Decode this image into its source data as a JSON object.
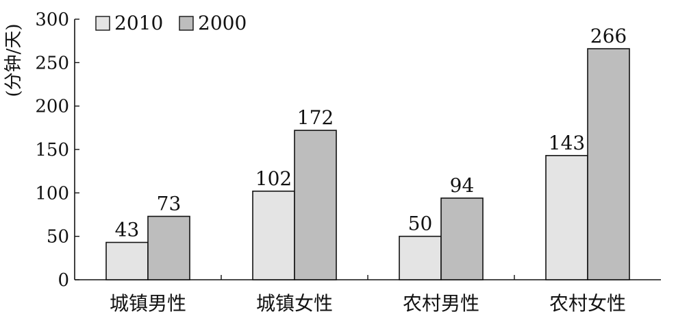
{
  "chart_data": {
    "type": "bar",
    "ylabel": "(分钟/天)",
    "xlabel": "",
    "ylim": [
      0,
      300
    ],
    "yticks": [
      0,
      50,
      100,
      150,
      200,
      250,
      300
    ],
    "categories": [
      "城镇男性",
      "城镇女性",
      "农村男性",
      "农村女性"
    ],
    "series": [
      {
        "name": "2010",
        "values": [
          43,
          102,
          50,
          143
        ],
        "color": "#e4e4e4"
      },
      {
        "name": "2000",
        "values": [
          73,
          172,
          94,
          266
        ],
        "color": "#bdbdbd"
      }
    ],
    "legend_position": "top-left",
    "grid": false
  }
}
